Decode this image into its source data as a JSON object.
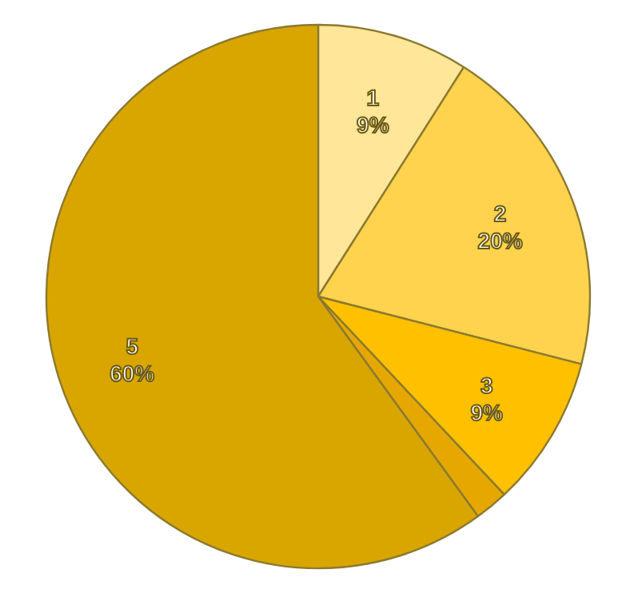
{
  "chart_data": {
    "type": "pie",
    "categories": [
      "1",
      "2",
      "3",
      null,
      "5"
    ],
    "values": [
      9,
      20,
      9,
      2,
      60
    ],
    "colors": [
      "#ffe699",
      "#ffd34d",
      "#ffc000",
      "#e6a800",
      "#d9a600"
    ],
    "value_labels": [
      "9%",
      "20%",
      "9%",
      null,
      "60%"
    ]
  }
}
